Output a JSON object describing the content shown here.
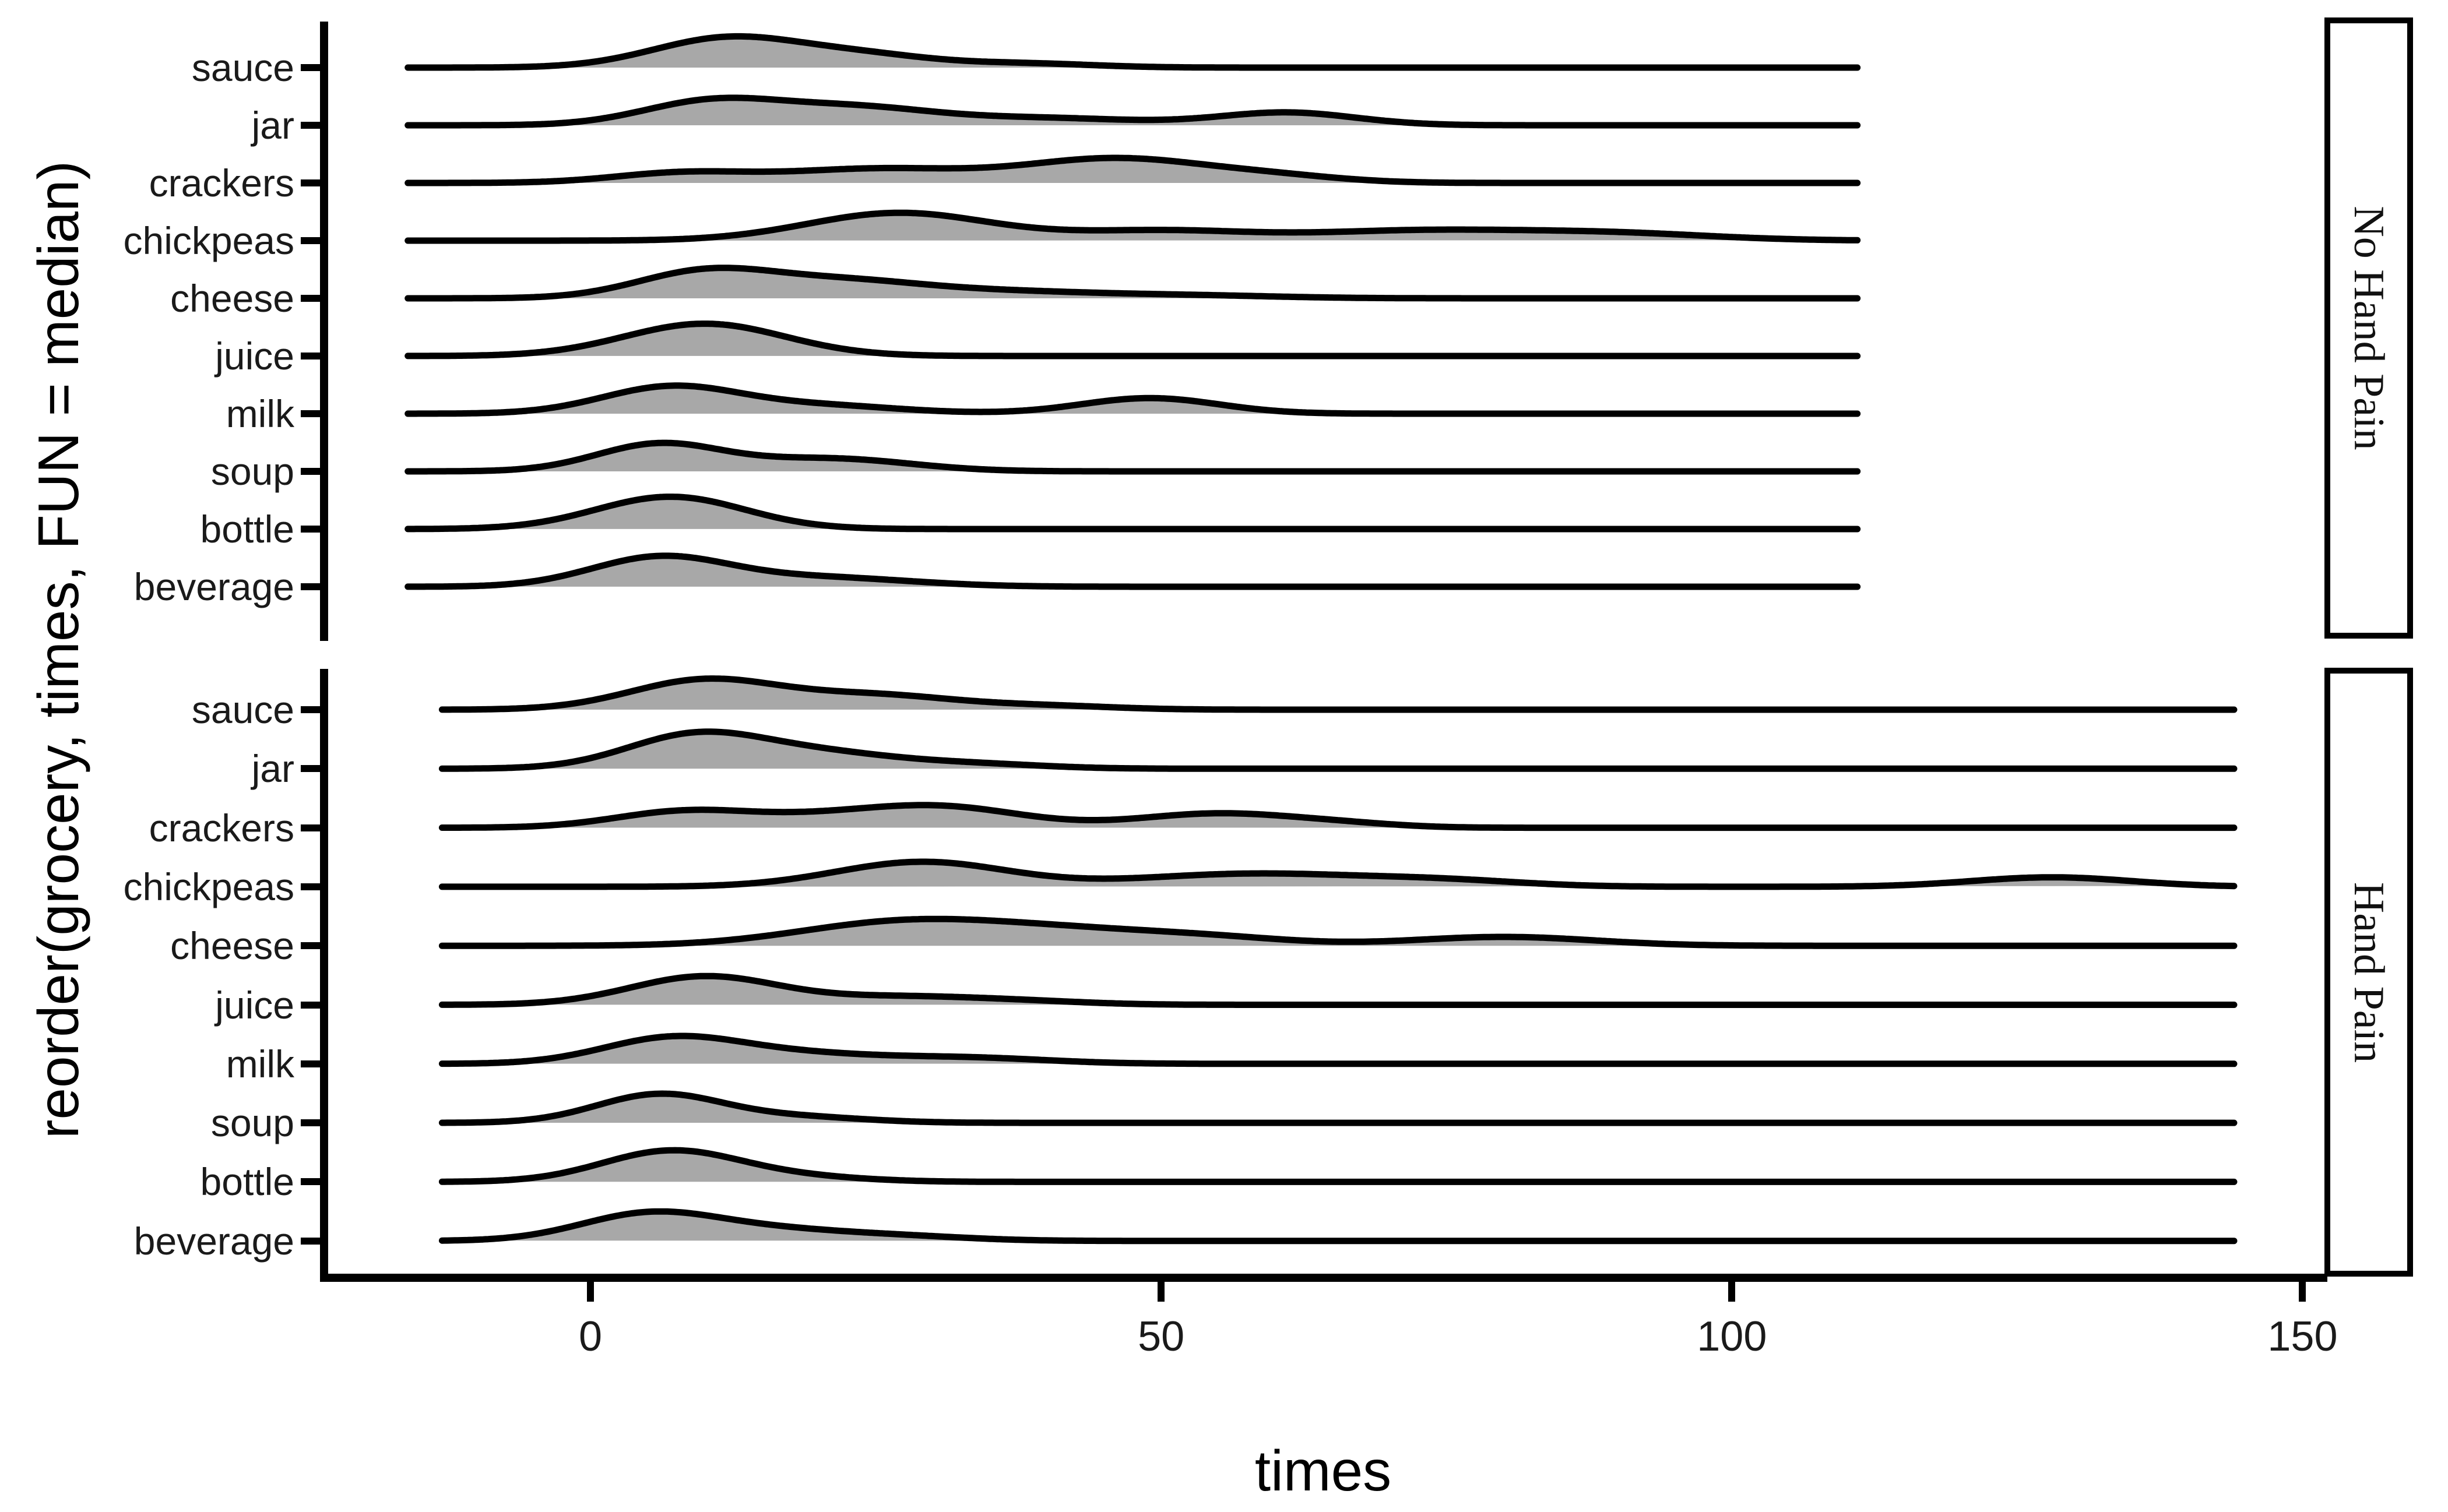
{
  "figure": {
    "background": "#ffffff"
  },
  "colors": {
    "curve_stroke": "#000000",
    "curve_fill": "#a8a8a8",
    "axis": "#000000",
    "tick_text": "#1a1a1a",
    "title_text": "#000000",
    "strip_border": "#000000",
    "strip_background": "#ffffff"
  },
  "y_axis": {
    "title": "reorder(grocery, times, FUN = median)",
    "categories_top_to_bottom": [
      "sauce",
      "jar",
      "crackers",
      "chickpeas",
      "cheese",
      "juice",
      "milk",
      "soup",
      "bottle",
      "beverage"
    ]
  },
  "x_axis": {
    "title": "times",
    "tick_values": [
      0,
      50,
      100,
      150
    ]
  },
  "facets": [
    {
      "label": "No Hand Pain"
    },
    {
      "label": "Hand Pain"
    }
  ],
  "chart_data": {
    "type": "area",
    "subtype": "ridgeline-density",
    "xlabel": "times",
    "ylabel": "reorder(grocery, times, FUN = median)",
    "x_ticks": [
      0,
      50,
      100,
      150
    ],
    "categories_top_to_bottom": [
      "sauce",
      "jar",
      "crackers",
      "chickpeas",
      "cheese",
      "juice",
      "milk",
      "soup",
      "bottle",
      "beverage"
    ],
    "legend": "none",
    "grid": false,
    "panels": [
      {
        "facet": "No Hand Pain",
        "x_range": [
          -16,
          111
        ],
        "rows": [
          {
            "category": "sauce",
            "bumps": [
              {
                "center": 12,
                "sd": 6.5,
                "rel_height": 0.51
              },
              {
                "center": 24,
                "sd": 6,
                "rel_height": 0.2
              },
              {
                "center": 38,
                "sd": 6,
                "rel_height": 0.07
              }
            ]
          },
          {
            "category": "jar",
            "bumps": [
              {
                "center": 10.5,
                "sd": 6,
                "rel_height": 0.4
              },
              {
                "center": 23,
                "sd": 7,
                "rel_height": 0.3
              },
              {
                "center": 40,
                "sd": 8,
                "rel_height": 0.12
              },
              {
                "center": 61,
                "sd": 6,
                "rel_height": 0.22
              }
            ]
          },
          {
            "category": "crackers",
            "bumps": [
              {
                "center": 8,
                "sd": 6,
                "rel_height": 0.17
              },
              {
                "center": 25,
                "sd": 8,
                "rel_height": 0.24
              },
              {
                "center": 46,
                "sd": 8,
                "rel_height": 0.42
              },
              {
                "center": 60,
                "sd": 6,
                "rel_height": 0.1
              }
            ]
          },
          {
            "category": "chickpeas",
            "bumps": [
              {
                "center": 27,
                "sd": 8,
                "rel_height": 0.48
              },
              {
                "center": 50,
                "sd": 8,
                "rel_height": 0.17
              },
              {
                "center": 72,
                "sd": 9,
                "rel_height": 0.16
              },
              {
                "center": 89,
                "sd": 9,
                "rel_height": 0.13
              }
            ]
          },
          {
            "category": "cheese",
            "bumps": [
              {
                "center": 10,
                "sd": 6,
                "rel_height": 0.45
              },
              {
                "center": 22,
                "sd": 7,
                "rel_height": 0.28
              },
              {
                "center": 36,
                "sd": 8,
                "rel_height": 0.11
              },
              {
                "center": 52,
                "sd": 8,
                "rel_height": 0.05
              }
            ]
          },
          {
            "category": "juice",
            "bumps": [
              {
                "center": 10,
                "sd": 7,
                "rel_height": 0.56
              }
            ]
          },
          {
            "category": "milk",
            "bumps": [
              {
                "center": 7,
                "sd": 6,
                "rel_height": 0.46
              },
              {
                "center": 20,
                "sd": 7,
                "rel_height": 0.14
              },
              {
                "center": 49,
                "sd": 6,
                "rel_height": 0.27
              }
            ]
          },
          {
            "category": "soup",
            "bumps": [
              {
                "center": 6,
                "sd": 5.5,
                "rel_height": 0.47
              },
              {
                "center": 21,
                "sd": 7,
                "rel_height": 0.22
              }
            ]
          },
          {
            "category": "bottle",
            "bumps": [
              {
                "center": 7,
                "sd": 6.5,
                "rel_height": 0.56
              }
            ]
          },
          {
            "category": "beverage",
            "bumps": [
              {
                "center": 6,
                "sd": 6,
                "rel_height": 0.5
              },
              {
                "center": 20,
                "sd": 8,
                "rel_height": 0.16
              }
            ]
          }
        ]
      },
      {
        "facet": "Hand Pain",
        "x_range": [
          -13,
          144
        ],
        "rows": [
          {
            "category": "sauce",
            "bumps": [
              {
                "center": 10,
                "sd": 6.5,
                "rel_height": 0.5
              },
              {
                "center": 25,
                "sd": 7,
                "rel_height": 0.24
              },
              {
                "center": 40,
                "sd": 6,
                "rel_height": 0.06
              }
            ]
          },
          {
            "category": "jar",
            "bumps": [
              {
                "center": 9,
                "sd": 6,
                "rel_height": 0.54
              },
              {
                "center": 20,
                "sd": 7,
                "rel_height": 0.26
              },
              {
                "center": 34,
                "sd": 6,
                "rel_height": 0.07
              }
            ]
          },
          {
            "category": "crackers",
            "bumps": [
              {
                "center": 8,
                "sd": 6,
                "rel_height": 0.26
              },
              {
                "center": 20,
                "sd": 7,
                "rel_height": 0.15
              },
              {
                "center": 31,
                "sd": 7,
                "rel_height": 0.33
              },
              {
                "center": 55,
                "sd": 7,
                "rel_height": 0.24
              },
              {
                "center": 66,
                "sd": 5,
                "rel_height": 0.05
              }
            ]
          },
          {
            "category": "chickpeas",
            "bumps": [
              {
                "center": 29,
                "sd": 7.5,
                "rel_height": 0.42
              },
              {
                "center": 58,
                "sd": 10,
                "rel_height": 0.22
              },
              {
                "center": 75,
                "sd": 7,
                "rel_height": 0.09
              },
              {
                "center": 128,
                "sd": 7,
                "rel_height": 0.16
              }
            ]
          },
          {
            "category": "cheese",
            "bumps": [
              {
                "center": 27,
                "sd": 9,
                "rel_height": 0.38
              },
              {
                "center": 42,
                "sd": 9,
                "rel_height": 0.23
              },
              {
                "center": 55,
                "sd": 7,
                "rel_height": 0.1
              },
              {
                "center": 80,
                "sd": 8,
                "rel_height": 0.15
              }
            ]
          },
          {
            "category": "juice",
            "bumps": [
              {
                "center": 10,
                "sd": 6.5,
                "rel_height": 0.48
              },
              {
                "center": 27,
                "sd": 7,
                "rel_height": 0.13
              },
              {
                "center": 38,
                "sd": 6,
                "rel_height": 0.05
              }
            ]
          },
          {
            "category": "milk",
            "bumps": [
              {
                "center": 7,
                "sd": 6,
                "rel_height": 0.42
              },
              {
                "center": 18,
                "sd": 7,
                "rel_height": 0.16
              },
              {
                "center": 33,
                "sd": 7,
                "rel_height": 0.1
              }
            ]
          },
          {
            "category": "soup",
            "bumps": [
              {
                "center": 6,
                "sd": 5.5,
                "rel_height": 0.48
              },
              {
                "center": 18,
                "sd": 6,
                "rel_height": 0.1
              }
            ]
          },
          {
            "category": "bottle",
            "bumps": [
              {
                "center": 7,
                "sd": 6,
                "rel_height": 0.52
              },
              {
                "center": 18,
                "sd": 6,
                "rel_height": 0.08
              }
            ]
          },
          {
            "category": "beverage",
            "bumps": [
              {
                "center": 5,
                "sd": 6,
                "rel_height": 0.44
              },
              {
                "center": 16,
                "sd": 7,
                "rel_height": 0.18
              },
              {
                "center": 28,
                "sd": 6,
                "rel_height": 0.06
              }
            ]
          }
        ]
      }
    ]
  }
}
